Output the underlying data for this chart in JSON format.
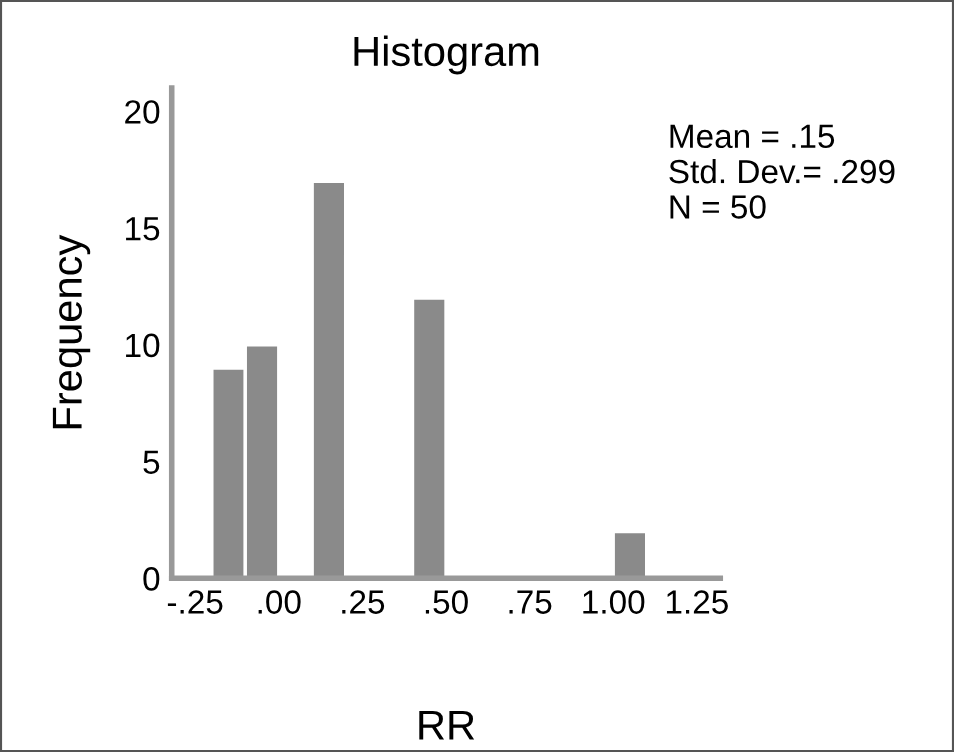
{
  "chart_data": {
    "type": "histogram",
    "title": "Histogram",
    "xlabel": "RR",
    "ylabel": "Frequency",
    "bins": [
      -0.2,
      -0.1,
      0.0,
      0.1,
      0.2,
      0.3,
      0.4,
      0.5,
      0.6,
      0.7,
      0.8,
      0.9,
      1.0,
      1.1
    ],
    "values": [
      9,
      10,
      0,
      17,
      0,
      0,
      12,
      0,
      0,
      0,
      0,
      0,
      2
    ],
    "color": "#8a8a8a",
    "xlim": [
      -0.32,
      1.32
    ],
    "xticks": [
      {
        "value": -0.25,
        "label": "-.25"
      },
      {
        "value": 0,
        "label": ".00"
      },
      {
        "value": 0.25,
        "label": ".25"
      },
      {
        "value": 0.5,
        "label": ".50"
      },
      {
        "value": 0.75,
        "label": ".75"
      },
      {
        "value": 1.0,
        "label": "1.00"
      },
      {
        "value": 1.25,
        "label": "1.25"
      }
    ],
    "ylim": [
      0,
      21
    ],
    "yticks": [
      0,
      5,
      10,
      15,
      20
    ],
    "grid": false,
    "legend": false,
    "annotations": [
      "Mean = .15",
      "Std. Dev.= .299",
      "N = 50"
    ]
  }
}
